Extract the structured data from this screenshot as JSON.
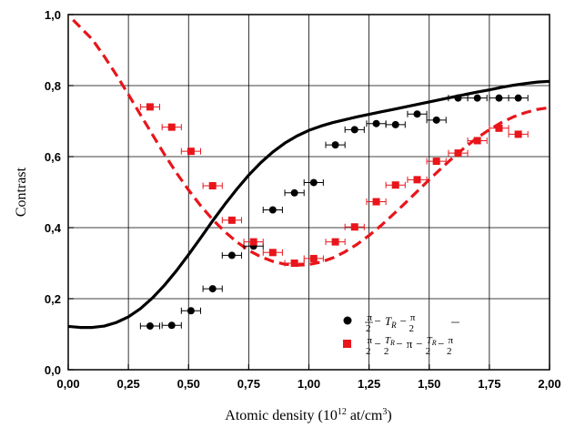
{
  "chart_data": {
    "type": "scatter",
    "xlabel": "Atomic density (10",
    "xlabel_exp": "12",
    "xlabel_rest": " at/cm",
    "xlabel_exp2": "3",
    "xlabel_close": ")",
    "ylabel": "Contrast",
    "xlim": [
      0,
      2
    ],
    "ylim": [
      0,
      1
    ],
    "grid": true,
    "legend_position": "bottom-right",
    "x_ticks": [
      "0,00",
      "0,25",
      "0,50",
      "0,75",
      "1,00",
      "1,25",
      "1,50",
      "1,75",
      "2,00"
    ],
    "y_ticks": [
      "0,0",
      "0,2",
      "0,4",
      "0,6",
      "0,8",
      "1,0"
    ],
    "series": [
      {
        "legend": "π/2 − T_R − π/2",
        "marker": "circle",
        "color": "#000000",
        "points": [
          {
            "x": 0.34,
            "y": 0.123,
            "xerr": 0.04
          },
          {
            "x": 0.43,
            "y": 0.125,
            "xerr": 0.04
          },
          {
            "x": 0.51,
            "y": 0.166,
            "xerr": 0.04
          },
          {
            "x": 0.6,
            "y": 0.228,
            "xerr": 0.04
          },
          {
            "x": 0.68,
            "y": 0.322,
            "xerr": 0.04
          },
          {
            "x": 0.77,
            "y": 0.348,
            "xerr": 0.04
          },
          {
            "x": 0.85,
            "y": 0.45,
            "xerr": 0.04
          },
          {
            "x": 0.94,
            "y": 0.498,
            "xerr": 0.04
          },
          {
            "x": 1.02,
            "y": 0.527,
            "xerr": 0.04
          },
          {
            "x": 1.11,
            "y": 0.633,
            "xerr": 0.04
          },
          {
            "x": 1.19,
            "y": 0.676,
            "xerr": 0.04
          },
          {
            "x": 1.28,
            "y": 0.693,
            "xerr": 0.04
          },
          {
            "x": 1.36,
            "y": 0.69,
            "xerr": 0.04
          },
          {
            "x": 1.45,
            "y": 0.72,
            "xerr": 0.04
          },
          {
            "x": 1.53,
            "y": 0.703,
            "xerr": 0.04
          },
          {
            "x": 1.62,
            "y": 0.765,
            "xerr": 0.04
          },
          {
            "x": 1.7,
            "y": 0.765,
            "xerr": 0.04
          },
          {
            "x": 1.79,
            "y": 0.765,
            "xerr": 0.04
          },
          {
            "x": 1.87,
            "y": 0.765,
            "xerr": 0.04
          }
        ],
        "theory_curve": {
          "style": "solid",
          "x": [
            0,
            0.05,
            0.1,
            0.15,
            0.2,
            0.25,
            0.3,
            0.35,
            0.4,
            0.45,
            0.5,
            0.55,
            0.6,
            0.65,
            0.7,
            0.75,
            0.8,
            0.85,
            0.9,
            0.95,
            1.0,
            1.05,
            1.1,
            1.15,
            1.2,
            1.25,
            1.3,
            1.35,
            1.4,
            1.45,
            1.5,
            1.55,
            1.6,
            1.65,
            1.7,
            1.75,
            1.8,
            1.85,
            1.9,
            1.95,
            2.0
          ],
          "y": [
            0.122,
            0.119,
            0.119,
            0.123,
            0.133,
            0.149,
            0.172,
            0.202,
            0.238,
            0.279,
            0.324,
            0.371,
            0.419,
            0.465,
            0.508,
            0.548,
            0.583,
            0.613,
            0.638,
            0.658,
            0.674,
            0.686,
            0.696,
            0.704,
            0.712,
            0.719,
            0.726,
            0.733,
            0.74,
            0.747,
            0.754,
            0.761,
            0.768,
            0.775,
            0.782,
            0.788,
            0.795,
            0.801,
            0.806,
            0.81,
            0.812
          ]
        }
      },
      {
        "legend": "π/2 − T_R/2 − π − T_R/2 − π/2",
        "marker": "square",
        "color": "#e8151b",
        "points": [
          {
            "x": 0.34,
            "y": 0.74,
            "xerr": 0.04
          },
          {
            "x": 0.43,
            "y": 0.683,
            "xerr": 0.04
          },
          {
            "x": 0.51,
            "y": 0.615,
            "xerr": 0.04
          },
          {
            "x": 0.6,
            "y": 0.518,
            "xerr": 0.04
          },
          {
            "x": 0.68,
            "y": 0.421,
            "xerr": 0.04
          },
          {
            "x": 0.77,
            "y": 0.36,
            "xerr": 0.04
          },
          {
            "x": 0.85,
            "y": 0.33,
            "xerr": 0.04
          },
          {
            "x": 0.94,
            "y": 0.3,
            "xerr": 0.04
          },
          {
            "x": 1.02,
            "y": 0.313,
            "xerr": 0.04
          },
          {
            "x": 1.11,
            "y": 0.36,
            "xerr": 0.04
          },
          {
            "x": 1.19,
            "y": 0.402,
            "xerr": 0.04
          },
          {
            "x": 1.28,
            "y": 0.473,
            "xerr": 0.04
          },
          {
            "x": 1.36,
            "y": 0.52,
            "xerr": 0.04
          },
          {
            "x": 1.45,
            "y": 0.535,
            "xerr": 0.04
          },
          {
            "x": 1.53,
            "y": 0.587,
            "xerr": 0.04
          },
          {
            "x": 1.62,
            "y": 0.61,
            "xerr": 0.04
          },
          {
            "x": 1.7,
            "y": 0.645,
            "xerr": 0.04
          },
          {
            "x": 1.79,
            "y": 0.68,
            "xerr": 0.04
          },
          {
            "x": 1.87,
            "y": 0.663,
            "xerr": 0.04
          }
        ],
        "theory_curve": {
          "style": "dashed",
          "x": [
            0.02,
            0.1,
            0.15,
            0.2,
            0.25,
            0.3,
            0.35,
            0.4,
            0.45,
            0.5,
            0.55,
            0.6,
            0.65,
            0.7,
            0.75,
            0.8,
            0.85,
            0.9,
            0.95,
            1.0,
            1.05,
            1.1,
            1.15,
            1.2,
            1.25,
            1.3,
            1.35,
            1.4,
            1.45,
            1.5,
            1.55,
            1.6,
            1.65,
            1.7,
            1.75,
            1.8,
            1.85,
            1.9,
            1.95,
            2.0,
            2.05
          ],
          "y": [
            0.985,
            0.93,
            0.882,
            0.83,
            0.775,
            0.718,
            0.662,
            0.606,
            0.554,
            0.506,
            0.462,
            0.423,
            0.389,
            0.36,
            0.336,
            0.318,
            0.305,
            0.297,
            0.294,
            0.296,
            0.303,
            0.315,
            0.332,
            0.353,
            0.378,
            0.406,
            0.437,
            0.469,
            0.502,
            0.535,
            0.567,
            0.598,
            0.627,
            0.653,
            0.676,
            0.696,
            0.712,
            0.724,
            0.733,
            0.738,
            0.742
          ]
        }
      }
    ]
  }
}
